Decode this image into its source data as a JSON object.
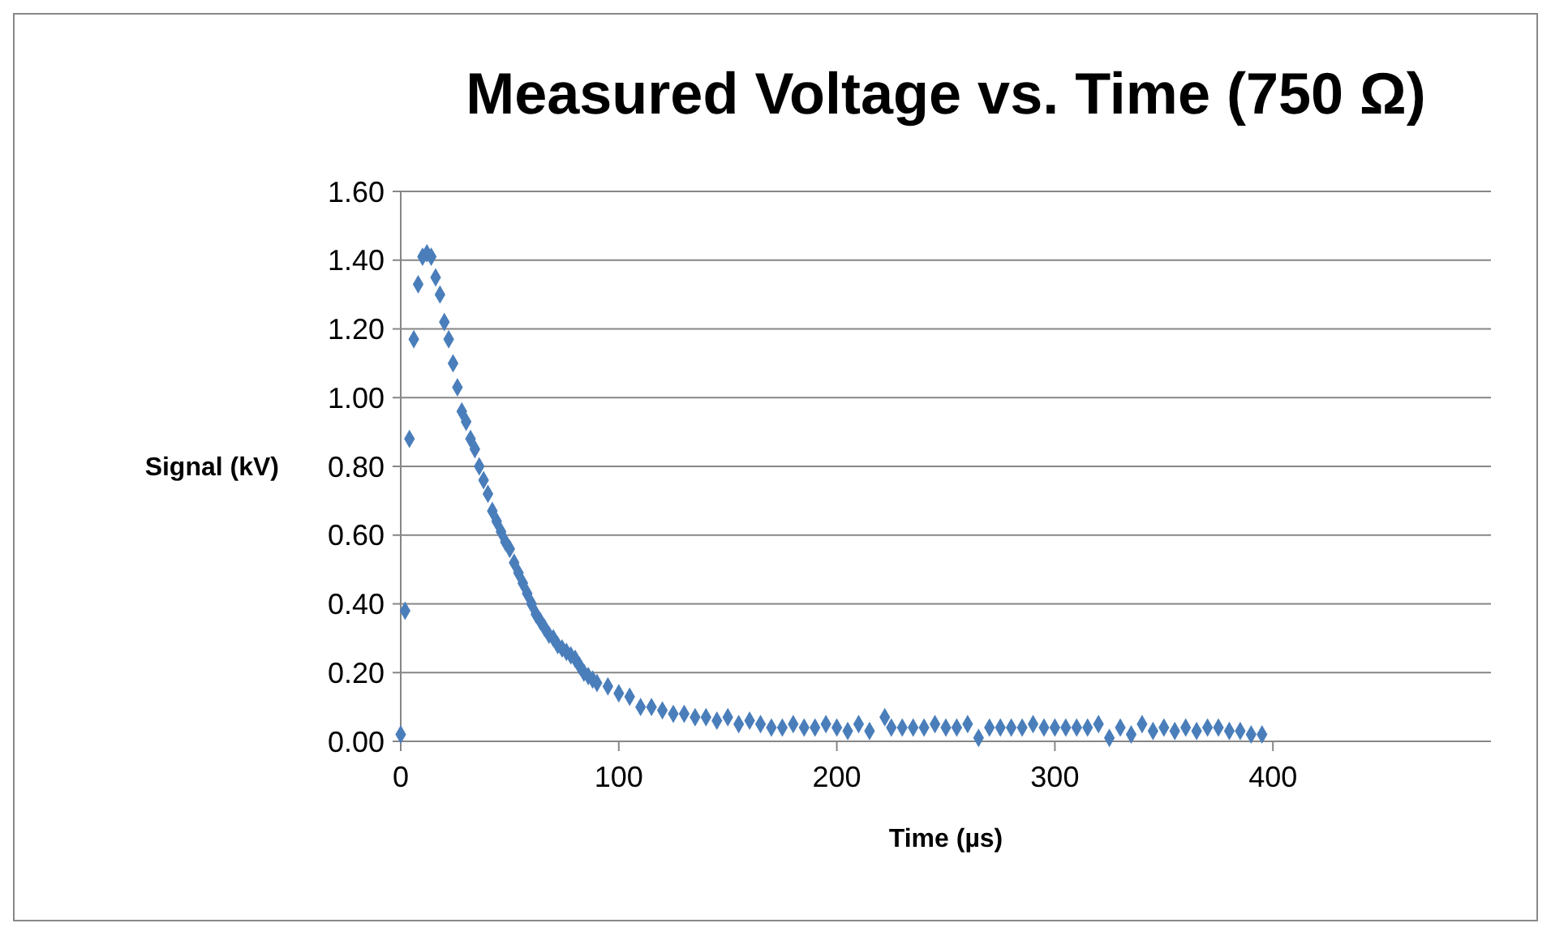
{
  "chart_data": {
    "type": "scatter",
    "title": "Measured Voltage vs. Time (750 Ω)",
    "xlabel": "Time (µs)",
    "ylabel": "Signal (kV)",
    "marker": "diamond",
    "grid": "y",
    "xlim": [
      0,
      500
    ],
    "xticks": [
      0,
      100,
      200,
      300,
      400
    ],
    "ylim": [
      0,
      1.6
    ],
    "yticks": [
      {
        "value": 0,
        "label": "0.00"
      },
      {
        "value": 0.2,
        "label": "0.20"
      },
      {
        "value": 0.4,
        "label": "0.40"
      },
      {
        "value": 0.6,
        "label": "0.60"
      },
      {
        "value": 0.8,
        "label": "0.80"
      },
      {
        "value": 1,
        "label": "1.00"
      },
      {
        "value": 1.2,
        "label": "1.20"
      },
      {
        "value": 1.4,
        "label": "1.40"
      },
      {
        "value": 1.6,
        "label": "1.60"
      }
    ],
    "series": [
      {
        "color": "#4a7ebb",
        "x": [
          0,
          2,
          4,
          6,
          8,
          10,
          12,
          14,
          16,
          18,
          20,
          22,
          24,
          26,
          28,
          30,
          32,
          34,
          36,
          38,
          40,
          42,
          44,
          46,
          48,
          50,
          52,
          54,
          56,
          58,
          60,
          62,
          64,
          66,
          68,
          70,
          72,
          74,
          76,
          78,
          80,
          82,
          84,
          86,
          88,
          90,
          95,
          100,
          105,
          110,
          115,
          120,
          125,
          130,
          135,
          140,
          145,
          150,
          155,
          160,
          165,
          170,
          175,
          180,
          185,
          190,
          195,
          200,
          205,
          210,
          215,
          222,
          225,
          230,
          235,
          240,
          245,
          250,
          255,
          260,
          265,
          270,
          275,
          280,
          285,
          290,
          295,
          300,
          305,
          310,
          315,
          320,
          325,
          330,
          335,
          340,
          345,
          350,
          355,
          360,
          365,
          370,
          375,
          380,
          385,
          390,
          395
        ],
        "values": [
          0.02,
          0.38,
          0.88,
          1.17,
          1.33,
          1.41,
          1.42,
          1.41,
          1.35,
          1.3,
          1.22,
          1.17,
          1.1,
          1.03,
          0.96,
          0.93,
          0.88,
          0.85,
          0.8,
          0.76,
          0.72,
          0.67,
          0.64,
          0.61,
          0.58,
          0.56,
          0.52,
          0.49,
          0.46,
          0.43,
          0.4,
          0.37,
          0.35,
          0.33,
          0.31,
          0.3,
          0.28,
          0.27,
          0.26,
          0.25,
          0.24,
          0.22,
          0.2,
          0.19,
          0.18,
          0.17,
          0.16,
          0.14,
          0.13,
          0.1,
          0.1,
          0.09,
          0.08,
          0.08,
          0.07,
          0.07,
          0.06,
          0.07,
          0.05,
          0.06,
          0.05,
          0.04,
          0.04,
          0.05,
          0.04,
          0.04,
          0.05,
          0.04,
          0.03,
          0.05,
          0.03,
          0.07,
          0.04,
          0.04,
          0.04,
          0.04,
          0.05,
          0.04,
          0.04,
          0.05,
          0.01,
          0.04,
          0.04,
          0.04,
          0.04,
          0.05,
          0.04,
          0.04,
          0.04,
          0.04,
          0.04,
          0.05,
          0.01,
          0.04,
          0.02,
          0.05,
          0.03,
          0.04,
          0.03,
          0.04,
          0.03,
          0.04,
          0.04,
          0.03,
          0.03,
          0.02,
          0.02
        ]
      }
    ]
  }
}
